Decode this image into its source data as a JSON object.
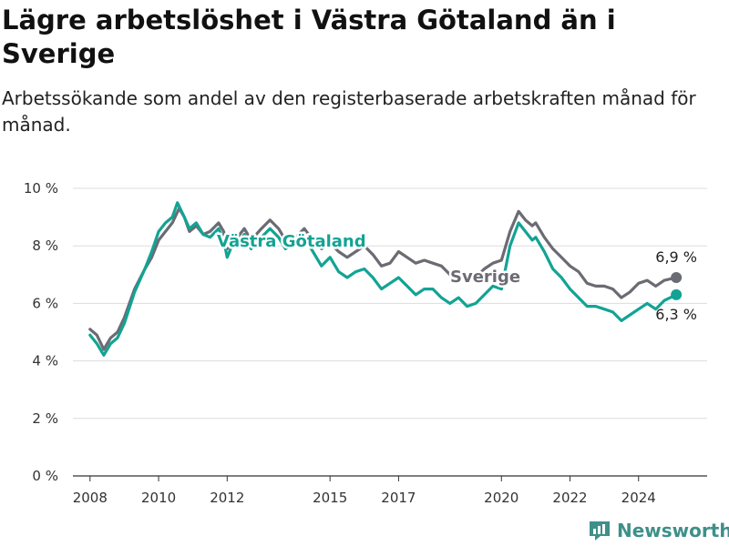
{
  "title": "Lägre arbetslöshet i Västra Götaland än i Sverige",
  "subtitle": "Arbetssökande som andel av den registerbaserade arbetskraften månad för månad.",
  "brand": "Newsworthy",
  "colors": {
    "sverige": "#6b6b73",
    "vastra_gotaland": "#13a394",
    "grid": "#dddddd",
    "axis": "#333333",
    "brand": "#3f8f8a"
  },
  "icons": [
    "newsworthy-logo-icon"
  ],
  "chart_data": {
    "type": "line",
    "title": "Lägre arbetslöshet i Västra Götaland än i Sverige",
    "xlabel": "",
    "ylabel": "",
    "xlim": [
      2007.5,
      2026.0
    ],
    "ylim": [
      0,
      10
    ],
    "x_ticks": [
      2008,
      2010,
      2012,
      2015,
      2017,
      2020,
      2022,
      2024
    ],
    "y_ticks": [
      0,
      2,
      4,
      6,
      8,
      10
    ],
    "y_tick_labels": [
      "0 %",
      "2 %",
      "4 %",
      "6 %",
      "8 %",
      "10 %"
    ],
    "grid": true,
    "legend": "inline labels",
    "series": [
      {
        "name": "Sverige",
        "end_label": "6,9 %",
        "points": [
          [
            2008.0,
            5.1
          ],
          [
            2008.2,
            4.9
          ],
          [
            2008.4,
            4.4
          ],
          [
            2008.6,
            4.8
          ],
          [
            2008.8,
            5.0
          ],
          [
            2009.0,
            5.5
          ],
          [
            2009.3,
            6.5
          ],
          [
            2009.6,
            7.2
          ],
          [
            2009.8,
            7.6
          ],
          [
            2010.0,
            8.2
          ],
          [
            2010.2,
            8.5
          ],
          [
            2010.4,
            8.8
          ],
          [
            2010.6,
            9.3
          ],
          [
            2010.75,
            9.0
          ],
          [
            2010.9,
            8.5
          ],
          [
            2011.1,
            8.7
          ],
          [
            2011.3,
            8.4
          ],
          [
            2011.5,
            8.5
          ],
          [
            2011.75,
            8.8
          ],
          [
            2011.9,
            8.5
          ],
          [
            2012.0,
            7.9
          ],
          [
            2012.1,
            8.1
          ],
          [
            2012.3,
            8.3
          ],
          [
            2012.5,
            8.6
          ],
          [
            2012.7,
            8.2
          ],
          [
            2013.0,
            8.6
          ],
          [
            2013.25,
            8.9
          ],
          [
            2013.5,
            8.6
          ],
          [
            2013.7,
            8.2
          ],
          [
            2014.0,
            8.3
          ],
          [
            2014.25,
            8.6
          ],
          [
            2014.5,
            8.2
          ],
          [
            2014.75,
            7.9
          ],
          [
            2015.0,
            8.1
          ],
          [
            2015.25,
            7.8
          ],
          [
            2015.5,
            7.6
          ],
          [
            2015.75,
            7.8
          ],
          [
            2016.0,
            8.0
          ],
          [
            2016.25,
            7.7
          ],
          [
            2016.5,
            7.3
          ],
          [
            2016.75,
            7.4
          ],
          [
            2017.0,
            7.8
          ],
          [
            2017.25,
            7.6
          ],
          [
            2017.5,
            7.4
          ],
          [
            2017.75,
            7.5
          ],
          [
            2018.0,
            7.4
          ],
          [
            2018.25,
            7.3
          ],
          [
            2018.5,
            7.0
          ],
          [
            2018.75,
            7.1
          ],
          [
            2019.0,
            6.8
          ],
          [
            2019.25,
            6.9
          ],
          [
            2019.5,
            7.2
          ],
          [
            2019.75,
            7.4
          ],
          [
            2020.0,
            7.5
          ],
          [
            2020.25,
            8.5
          ],
          [
            2020.5,
            9.2
          ],
          [
            2020.7,
            8.9
          ],
          [
            2020.9,
            8.7
          ],
          [
            2021.0,
            8.8
          ],
          [
            2021.25,
            8.3
          ],
          [
            2021.5,
            7.9
          ],
          [
            2021.75,
            7.6
          ],
          [
            2022.0,
            7.3
          ],
          [
            2022.25,
            7.1
          ],
          [
            2022.5,
            6.7
          ],
          [
            2022.75,
            6.6
          ],
          [
            2023.0,
            6.6
          ],
          [
            2023.25,
            6.5
          ],
          [
            2023.5,
            6.2
          ],
          [
            2023.75,
            6.4
          ],
          [
            2024.0,
            6.7
          ],
          [
            2024.25,
            6.8
          ],
          [
            2024.5,
            6.6
          ],
          [
            2024.75,
            6.8
          ],
          [
            2025.1,
            6.9
          ]
        ]
      },
      {
        "name": "Västra Götaland",
        "end_label": "6,3 %",
        "points": [
          [
            2008.0,
            4.9
          ],
          [
            2008.2,
            4.6
          ],
          [
            2008.4,
            4.2
          ],
          [
            2008.6,
            4.6
          ],
          [
            2008.8,
            4.8
          ],
          [
            2009.0,
            5.3
          ],
          [
            2009.3,
            6.4
          ],
          [
            2009.6,
            7.2
          ],
          [
            2009.8,
            7.8
          ],
          [
            2010.0,
            8.5
          ],
          [
            2010.2,
            8.8
          ],
          [
            2010.4,
            9.0
          ],
          [
            2010.55,
            9.5
          ],
          [
            2010.75,
            9.0
          ],
          [
            2010.9,
            8.6
          ],
          [
            2011.1,
            8.8
          ],
          [
            2011.3,
            8.4
          ],
          [
            2011.5,
            8.3
          ],
          [
            2011.75,
            8.6
          ],
          [
            2011.9,
            8.2
          ],
          [
            2012.0,
            7.6
          ],
          [
            2012.1,
            7.9
          ],
          [
            2012.3,
            8.1
          ],
          [
            2012.5,
            8.4
          ],
          [
            2012.7,
            7.9
          ],
          [
            2013.0,
            8.3
          ],
          [
            2013.25,
            8.6
          ],
          [
            2013.5,
            8.3
          ],
          [
            2013.7,
            7.9
          ],
          [
            2014.0,
            8.1
          ],
          [
            2014.25,
            8.3
          ],
          [
            2014.5,
            7.8
          ],
          [
            2014.75,
            7.3
          ],
          [
            2015.0,
            7.6
          ],
          [
            2015.25,
            7.1
          ],
          [
            2015.5,
            6.9
          ],
          [
            2015.75,
            7.1
          ],
          [
            2016.0,
            7.2
          ],
          [
            2016.25,
            6.9
          ],
          [
            2016.5,
            6.5
          ],
          [
            2016.75,
            6.7
          ],
          [
            2017.0,
            6.9
          ],
          [
            2017.25,
            6.6
          ],
          [
            2017.5,
            6.3
          ],
          [
            2017.75,
            6.5
          ],
          [
            2018.0,
            6.5
          ],
          [
            2018.25,
            6.2
          ],
          [
            2018.5,
            6.0
          ],
          [
            2018.75,
            6.2
          ],
          [
            2019.0,
            5.9
          ],
          [
            2019.25,
            6.0
          ],
          [
            2019.5,
            6.3
          ],
          [
            2019.75,
            6.6
          ],
          [
            2020.0,
            6.5
          ],
          [
            2020.25,
            8.0
          ],
          [
            2020.5,
            8.8
          ],
          [
            2020.7,
            8.5
          ],
          [
            2020.9,
            8.2
          ],
          [
            2021.0,
            8.3
          ],
          [
            2021.25,
            7.8
          ],
          [
            2021.5,
            7.2
          ],
          [
            2021.75,
            6.9
          ],
          [
            2022.0,
            6.5
          ],
          [
            2022.25,
            6.2
          ],
          [
            2022.5,
            5.9
          ],
          [
            2022.75,
            5.9
          ],
          [
            2023.0,
            5.8
          ],
          [
            2023.25,
            5.7
          ],
          [
            2023.5,
            5.4
          ],
          [
            2023.75,
            5.6
          ],
          [
            2024.0,
            5.8
          ],
          [
            2024.25,
            6.0
          ],
          [
            2024.5,
            5.8
          ],
          [
            2024.75,
            6.1
          ],
          [
            2025.1,
            6.3
          ]
        ]
      }
    ]
  }
}
